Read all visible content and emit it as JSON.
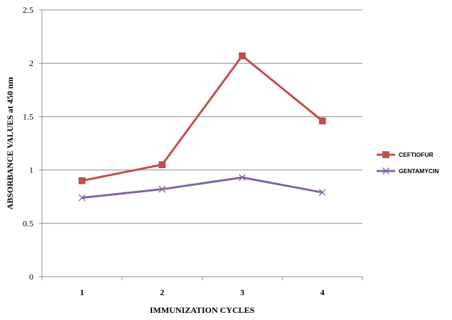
{
  "chart_data": {
    "type": "line",
    "categories": [
      "1",
      "2",
      "3",
      "4"
    ],
    "series": [
      {
        "name": "CEFTIOFUR",
        "values": [
          0.9,
          1.05,
          2.07,
          1.46
        ],
        "color": "#C0504D",
        "marker": "square"
      },
      {
        "name": "GENTAMYCIN",
        "values": [
          0.74,
          0.82,
          0.93,
          0.79
        ],
        "color": "#8064A2",
        "marker": "x"
      }
    ],
    "xlabel": "IMMUNIZATION  CYCLES",
    "ylabel": "ABSORBANCE  VALUES at 450 nm",
    "ylim": [
      0,
      2.5
    ],
    "yticks": [
      "0",
      "0.5",
      "1",
      "1.5",
      "2",
      "2.5"
    ],
    "grid": true,
    "legend_position": "right"
  }
}
